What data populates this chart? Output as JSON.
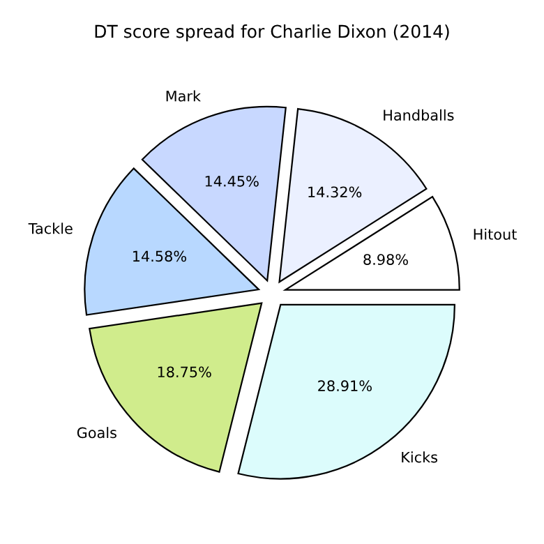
{
  "chart_data": {
    "type": "pie",
    "title": "DT score spread for Charlie Dixon (2014)",
    "categories": [
      "Hitout",
      "Handballs",
      "Mark",
      "Tackle",
      "Goals",
      "Kicks"
    ],
    "values": [
      8.98,
      14.32,
      14.45,
      14.58,
      18.75,
      28.91
    ],
    "value_labels": [
      "8.98%",
      "14.32%",
      "14.45%",
      "14.58%",
      "18.75%",
      "28.91%"
    ],
    "colors": [
      "#ffffff",
      "#ebf0ff",
      "#c8d8ff",
      "#b8d8ff",
      "#d0ec8c",
      "#dcfcfc"
    ]
  }
}
